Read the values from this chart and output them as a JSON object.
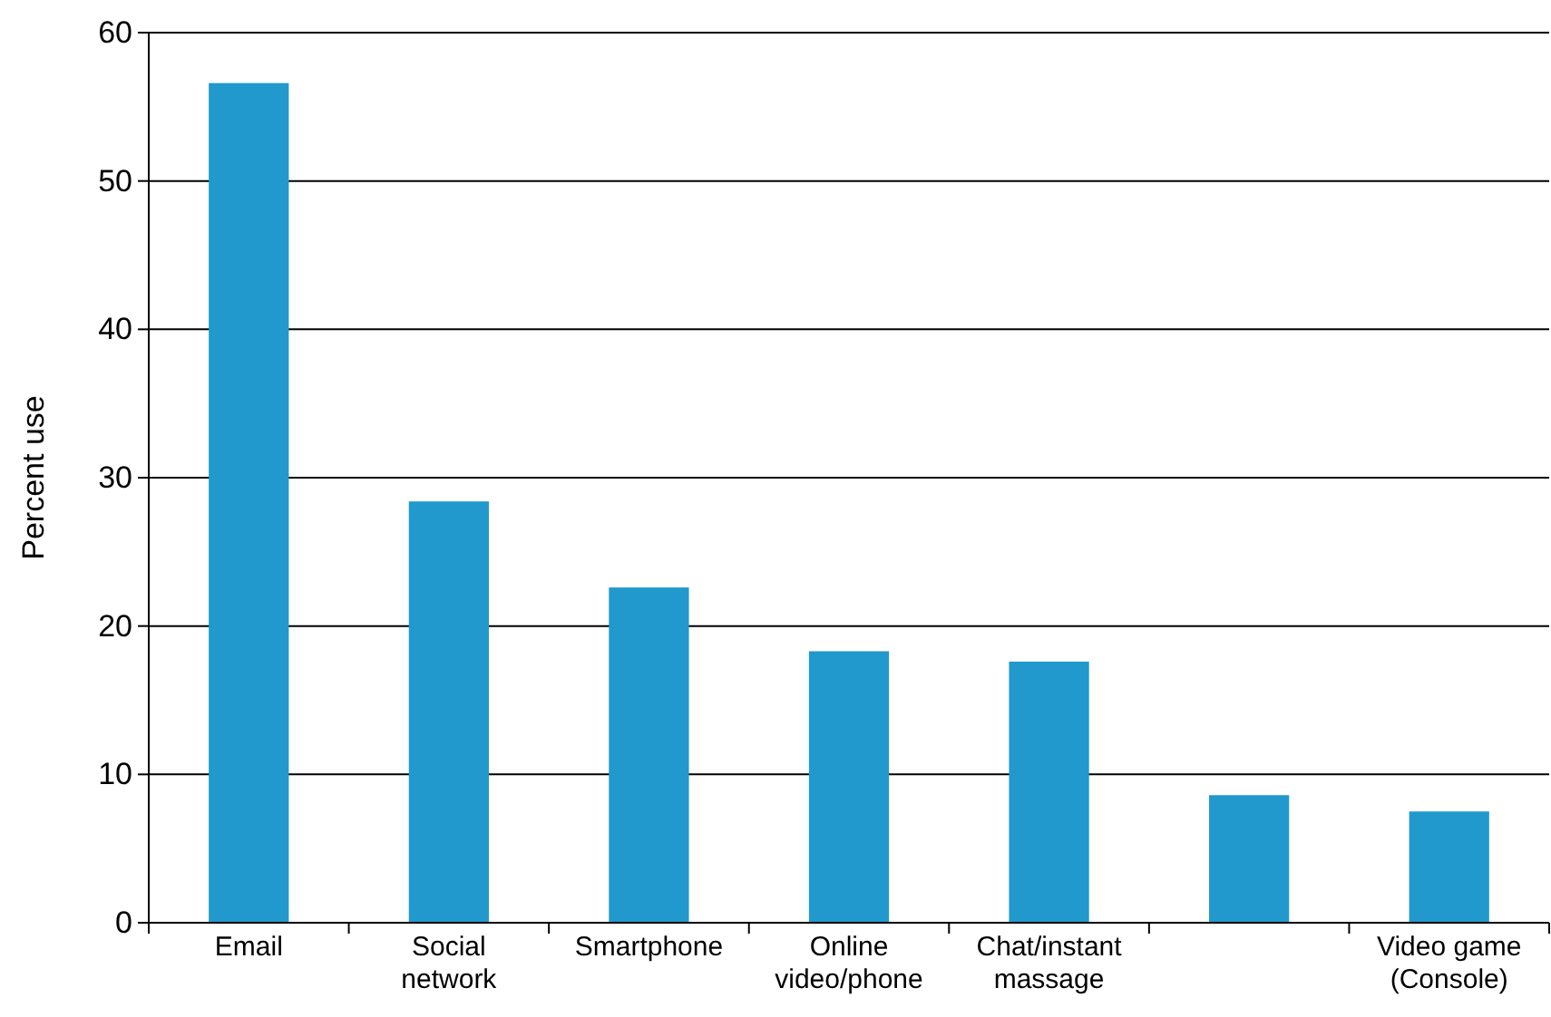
{
  "chart_data": {
    "type": "bar",
    "ylabel": "Percent use",
    "categories": [
      "Email",
      "Social network",
      "Smartphone",
      "Online video/phone",
      "Chat/instant massage",
      null,
      "Video game (Console)"
    ],
    "values": [
      56.6,
      28.4,
      22.6,
      18.3,
      17.6,
      8.6,
      7.5
    ],
    "color": "#2199cc",
    "ylim": [
      0,
      60
    ],
    "yticks": [
      0,
      10,
      20,
      30,
      40,
      50,
      60
    ],
    "grid": "y"
  }
}
